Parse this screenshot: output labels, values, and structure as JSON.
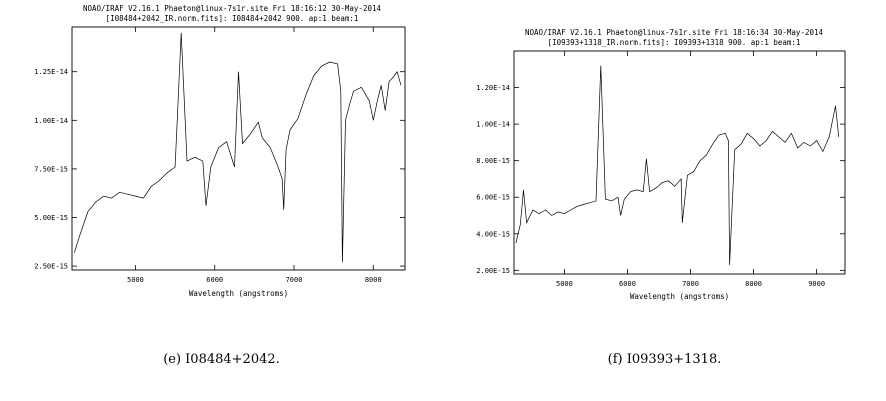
{
  "chart_data": [
    {
      "type": "line",
      "header_line1": "NOAO/IRAF V2.16.1 Phaeton@linux-7s1r.site Fri 18:16:12 30-May-2014",
      "header_line2": "[I08484+2042_IR.norm.fits]: I08484+2042 900. ap:1 beam:1",
      "xlabel": "Wavelength (angstroms)",
      "ylabel": "",
      "xlim": [
        4200,
        8400
      ],
      "ylim": [
        2.3e-15,
        1.48e-14
      ],
      "x_ticks": [
        5000,
        6000,
        7000,
        8000
      ],
      "x_tick_labels": [
        "5000",
        "6000",
        "7000",
        "8000"
      ],
      "y_ticks": [
        2.5e-15,
        5e-15,
        7.5e-15,
        1e-14,
        1.25e-14
      ],
      "y_tick_labels": [
        "2.50E-15",
        "5.00E-15",
        "7.50E-15",
        "1.00E-14",
        "1.25E-14"
      ],
      "grid": false,
      "caption": "(e) I08484+2042.",
      "series": [
        {
          "x": [
            4230,
            4300,
            4400,
            4500,
            4600,
            4700,
            4800,
            4900,
            5000,
            5100,
            5200,
            5300,
            5400,
            5500,
            5577,
            5650,
            5750,
            5850,
            5890,
            5950,
            6050,
            6150,
            6250,
            6300,
            6350,
            6450,
            6550,
            6600,
            6700,
            6800,
            6850,
            6870,
            6900,
            6950,
            7050,
            7150,
            7250,
            7350,
            7450,
            7550,
            7590,
            7610,
            7650,
            7700,
            7750,
            7850,
            7950,
            8000,
            8050,
            8100,
            8150,
            8200,
            8250,
            8300,
            8350
          ],
          "y": [
            3.2e-15,
            4.1e-15,
            5.3e-15,
            5.8e-15,
            6.1e-15,
            6e-15,
            6.3e-15,
            6.2e-15,
            6.1e-15,
            6e-15,
            6.6e-15,
            6.9e-15,
            7.3e-15,
            7.6e-15,
            1.45e-14,
            7.9e-15,
            8.1e-15,
            7.9e-15,
            5.6e-15,
            7.6e-15,
            8.6e-15,
            8.9e-15,
            7.6e-15,
            1.25e-14,
            8.8e-15,
            9.3e-15,
            9.9e-15,
            9.1e-15,
            8.6e-15,
            7.6e-15,
            7e-15,
            5.4e-15,
            8.5e-15,
            9.5e-15,
            1.01e-14,
            1.13e-14,
            1.23e-14,
            1.28e-14,
            1.3e-14,
            1.29e-14,
            1.15e-14,
            2.7e-15,
            1e-14,
            1.08e-14,
            1.15e-14,
            1.17e-14,
            1.1e-14,
            1e-14,
            1.1e-14,
            1.18e-14,
            1.05e-14,
            1.2e-14,
            1.22e-14,
            1.25e-14,
            1.18e-14
          ]
        }
      ]
    },
    {
      "type": "line",
      "header_line1": "NOAO/IRAF V2.16.1 Phaeton@linux-7s1r.site Fri 18:16:34 30-May-2014",
      "header_line2": "[I09393+1318_IR.norm.fits]: I09393+1318 900. ap:1 beam:1",
      "xlabel": "Wavelength (angstroms)",
      "ylabel": "",
      "xlim": [
        4200,
        9450
      ],
      "ylim": [
        1.8e-15,
        1.4e-14
      ],
      "x_ticks": [
        5000,
        6000,
        7000,
        8000,
        9000
      ],
      "x_tick_labels": [
        "5000",
        "6000",
        "7000",
        "8000",
        "9000"
      ],
      "y_ticks": [
        2e-15,
        4e-15,
        6e-15,
        8e-15,
        1e-14,
        1.2e-14
      ],
      "y_tick_labels": [
        "2.00E-15",
        "4.00E-15",
        "6.00E-15",
        "8.00E-15",
        "1.00E-14",
        "1.20E-14"
      ],
      "grid": false,
      "caption": "(f) I09393+1318.",
      "series": [
        {
          "x": [
            4230,
            4300,
            4350,
            4400,
            4500,
            4600,
            4700,
            4800,
            4900,
            5000,
            5100,
            5200,
            5300,
            5400,
            5500,
            5577,
            5650,
            5750,
            5850,
            5890,
            5950,
            6050,
            6150,
            6250,
            6300,
            6350,
            6450,
            6550,
            6650,
            6750,
            6850,
            6870,
            6950,
            7050,
            7150,
            7250,
            7350,
            7450,
            7550,
            7600,
            7620,
            7700,
            7800,
            7900,
            8000,
            8100,
            8200,
            8300,
            8400,
            8500,
            8600,
            8700,
            8800,
            8900,
            9000,
            9100,
            9200,
            9300,
            9350
          ],
          "y": [
            3.5e-15,
            4.5e-15,
            6.4e-15,
            4.6e-15,
            5.3e-15,
            5.1e-15,
            5.3e-15,
            5e-15,
            5.2e-15,
            5.1e-15,
            5.3e-15,
            5.5e-15,
            5.6e-15,
            5.7e-15,
            5.8e-15,
            1.32e-14,
            5.9e-15,
            5.8e-15,
            6e-15,
            5e-15,
            5.9e-15,
            6.3e-15,
            6.4e-15,
            6.3e-15,
            8.1e-15,
            6.3e-15,
            6.5e-15,
            6.8e-15,
            6.9e-15,
            6.6e-15,
            7e-15,
            4.6e-15,
            7.2e-15,
            7.4e-15,
            8e-15,
            8.3e-15,
            8.9e-15,
            9.4e-15,
            9.5e-15,
            9.1e-15,
            2.3e-15,
            8.6e-15,
            8.9e-15,
            9.5e-15,
            9.2e-15,
            8.8e-15,
            9.1e-15,
            9.6e-15,
            9.3e-15,
            9e-15,
            9.5e-15,
            8.7e-15,
            9e-15,
            8.8e-15,
            9.1e-15,
            8.5e-15,
            9.3e-15,
            1.1e-14,
            9.3e-15
          ]
        }
      ]
    }
  ]
}
